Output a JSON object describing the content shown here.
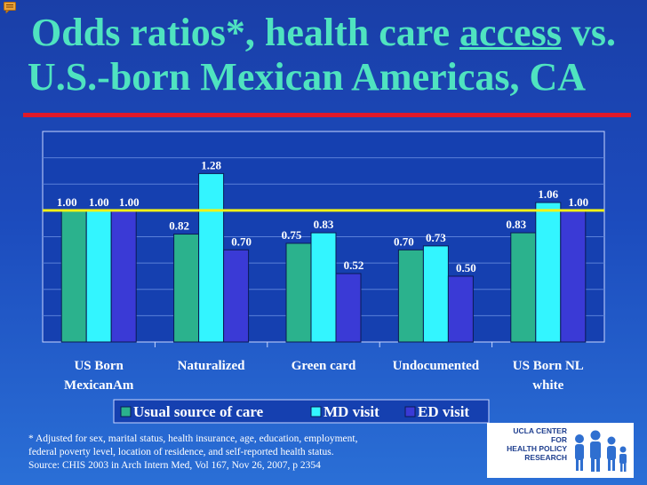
{
  "title": {
    "line1_prefix": "Odds ratios*, health care ",
    "line1_underlined": "access",
    "line1_suffix": " vs.",
    "line2": "U.S.-born Mexican Americas, CA"
  },
  "colors": {
    "title": "#4fe3c0",
    "rule": "#e0192a",
    "reference_line": "#f2f216",
    "series": [
      "#2bb28d",
      "#33f5ff",
      "#3a3ad6"
    ]
  },
  "chart_data": {
    "type": "bar",
    "title": "",
    "xlabel": "",
    "ylabel": "",
    "ylim": [
      0,
      1.6
    ],
    "grid": true,
    "reference_line": 1.0,
    "categories": [
      [
        "US Born",
        "MexicanAm"
      ],
      [
        "Naturalized"
      ],
      [
        "Green card"
      ],
      [
        "Undocumented"
      ],
      [
        "US Born NL",
        "white"
      ]
    ],
    "series": [
      {
        "name": "Usual source of care",
        "values": [
          1.0,
          0.82,
          0.75,
          0.7,
          0.83
        ],
        "labels": [
          "1.00",
          "0.82",
          "0.75",
          "0.70",
          "0.83"
        ]
      },
      {
        "name": "MD visit",
        "values": [
          1.0,
          1.28,
          0.83,
          0.73,
          1.06
        ],
        "labels": [
          "1.00",
          "1.28",
          "0.83",
          "0.73",
          "1.06"
        ]
      },
      {
        "name": "ED visit",
        "values": [
          1.0,
          0.7,
          0.52,
          0.5,
          1.0
        ],
        "labels": [
          "1.00",
          "0.70",
          "0.52",
          "0.50",
          "1.00"
        ]
      }
    ],
    "legend_position": "bottom"
  },
  "footnote": {
    "line1": "* Adjusted for sex, marital status, health insurance, age, education, employment,",
    "line2": "federal poverty level, location of residence, and self-reported health status.",
    "line3": "Source: CHIS 2003 in Arch Intern Med, Vol 167, Nov 26, 2007, p 2354"
  },
  "logo": {
    "line1": "UCLA CENTER FOR",
    "line2": "HEALTH POLICY RESEARCH"
  }
}
